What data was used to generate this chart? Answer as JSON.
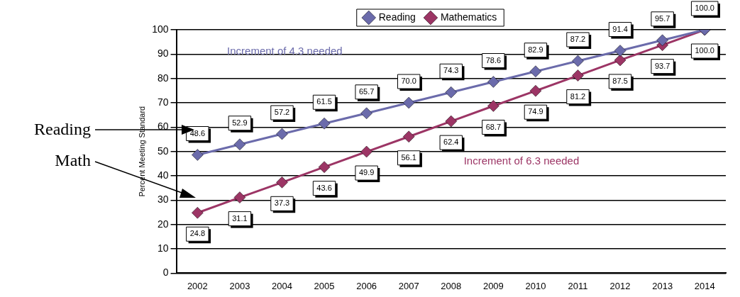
{
  "chart_data": {
    "type": "line",
    "ylabel": "Percent Meeting Standard",
    "categories": [
      "2002",
      "2003",
      "2004",
      "2005",
      "2006",
      "2007",
      "2008",
      "2009",
      "2010",
      "2011",
      "2012",
      "2013",
      "2014"
    ],
    "series": [
      {
        "name": "Reading",
        "color": "#6b6bab",
        "values": [
          48.6,
          52.9,
          57.2,
          61.5,
          65.7,
          70.0,
          74.3,
          78.6,
          82.9,
          87.2,
          91.4,
          95.7,
          100.0
        ],
        "value_labels": [
          "48.6",
          "52.9",
          "57.2",
          "61.5",
          "65.7",
          "70.0",
          "74.3",
          "78.6",
          "82.9",
          "87.2",
          "91.4",
          "95.7",
          "100.0"
        ]
      },
      {
        "name": "Mathematics",
        "color": "#9c3565",
        "values": [
          24.8,
          31.1,
          37.3,
          43.6,
          49.9,
          56.1,
          62.4,
          68.7,
          74.9,
          81.2,
          87.5,
          93.7,
          100.0
        ],
        "value_labels": [
          "24.8",
          "31.1",
          "37.3",
          "43.6",
          "49.9",
          "56.1",
          "62.4",
          "68.7",
          "74.9",
          "81.2",
          "87.5",
          "93.7",
          "100.0"
        ]
      }
    ],
    "annotations": [
      "Increment of 4.3 needed",
      "Increment of 6.3 needed",
      "Reading",
      "Math"
    ],
    "ylim": [
      0,
      100
    ],
    "yticks": [
      0,
      10,
      20,
      30,
      40,
      50,
      60,
      70,
      80,
      90,
      100
    ],
    "grid": "y",
    "legend": "top",
    "marker": "diamond",
    "line_style": "solid"
  }
}
